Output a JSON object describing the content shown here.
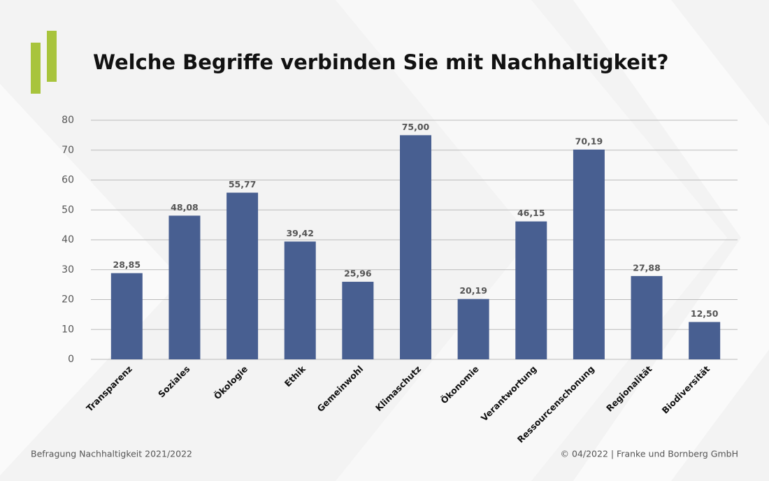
{
  "chart_data": {
    "type": "bar",
    "title": "Welche Begriffe verbinden Sie mit Nachhaltigkeit?",
    "categories": [
      "Transparenz",
      "Soziales",
      "Ökologie",
      "Ethik",
      "Gemeinwohl",
      "Klimaschutz",
      "Ökonomie",
      "Verantwortung",
      "Ressourcenschonung",
      "Regionalität",
      "Biodiversität"
    ],
    "values": [
      28.85,
      48.08,
      55.77,
      39.42,
      25.96,
      75.0,
      20.19,
      46.15,
      70.19,
      27.88,
      12.5
    ],
    "value_labels": [
      "28,85",
      "48,08",
      "55,77",
      "39,42",
      "25,96",
      "75,00",
      "20,19",
      "46,15",
      "70,19",
      "27,88",
      "12,50"
    ],
    "color": "#485f91",
    "ylim": [
      0,
      80
    ],
    "yticks": [
      0,
      10,
      20,
      30,
      40,
      50,
      60,
      70,
      80
    ],
    "grid": true,
    "source": "Befragung Nachhaltigkeit 2021/2022",
    "copyright": "© 04/2022 | Franke und Bornberg GmbH"
  }
}
